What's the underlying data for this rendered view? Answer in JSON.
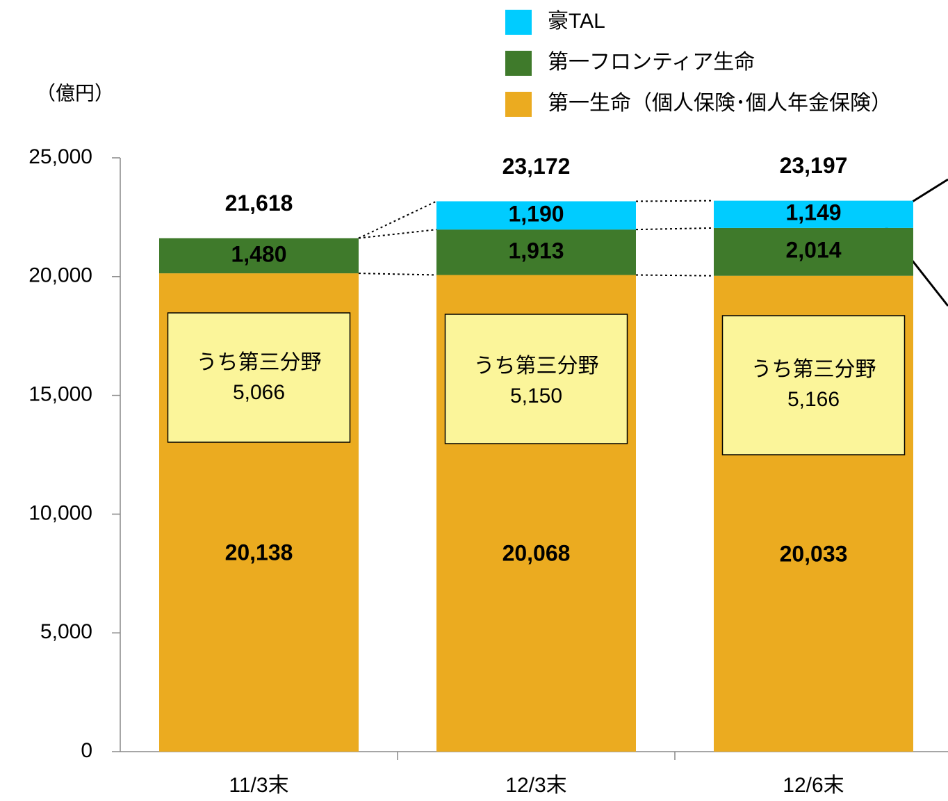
{
  "chart_data": {
    "type": "stacked_bar",
    "unit_label": "（億円）",
    "categories": [
      "11/3末",
      "12/3末",
      "12/6末"
    ],
    "series": [
      {
        "name": "第一生命（個人保険･個人年金保険）",
        "color": "#ebab20",
        "values": [
          20138,
          20068,
          20033
        ],
        "value_labels": [
          "20,138",
          "20,068",
          "20,033"
        ]
      },
      {
        "name": "第一フロンティア生命",
        "color": "#3f7a2b",
        "values": [
          1480,
          1913,
          2014
        ],
        "value_labels": [
          "1,480",
          "1,913",
          "2,014"
        ]
      },
      {
        "name": "豪TAL",
        "color": "#00ccff",
        "values": [
          null,
          1190,
          1149
        ],
        "value_labels": [
          null,
          "1,190",
          "1,149"
        ]
      }
    ],
    "totals": {
      "values": [
        21618,
        23172,
        23197
      ],
      "value_labels": [
        "21,618",
        "23,172",
        "23,197"
      ]
    },
    "subset": {
      "label": "うち第三分野",
      "color": "#fbf59a",
      "values": [
        5066,
        5150,
        5166
      ],
      "value_labels": [
        "5,066",
        "5,150",
        "5,166"
      ]
    },
    "ylim": [
      0,
      25000
    ],
    "yticks": [
      0,
      {
        "value": 5000,
        "label": "5,000"
      },
      {
        "value": 10000,
        "label": "10,000"
      },
      {
        "value": 15000,
        "label": "15,000"
      },
      {
        "value": 20000,
        "label": "20,000"
      },
      {
        "value": 25000,
        "label": "25,000"
      }
    ]
  }
}
